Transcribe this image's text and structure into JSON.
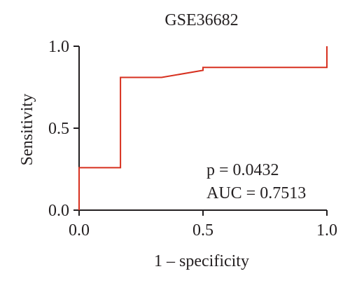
{
  "chart_data": {
    "type": "line",
    "title": "GSE36682",
    "xlabel": "1 – specificity",
    "ylabel": "Sensitivity",
    "xlim": [
      0,
      1
    ],
    "ylim": [
      0,
      1
    ],
    "x_ticks": [
      "0.0",
      "0.5",
      "1.0"
    ],
    "y_ticks": [
      "0.0",
      "0.5",
      "1.0"
    ],
    "grid": false,
    "series": [
      {
        "color": "#d7301f",
        "x": [
          0.0,
          0.0,
          0.167,
          0.167,
          0.333,
          0.5,
          0.5,
          1.0,
          1.0
        ],
        "y": [
          0.0,
          0.259,
          0.259,
          0.81,
          0.81,
          0.853,
          0.871,
          0.871,
          1.0
        ]
      }
    ],
    "annotations": [
      "p = 0.0432",
      "AUC = 0.7513"
    ]
  }
}
